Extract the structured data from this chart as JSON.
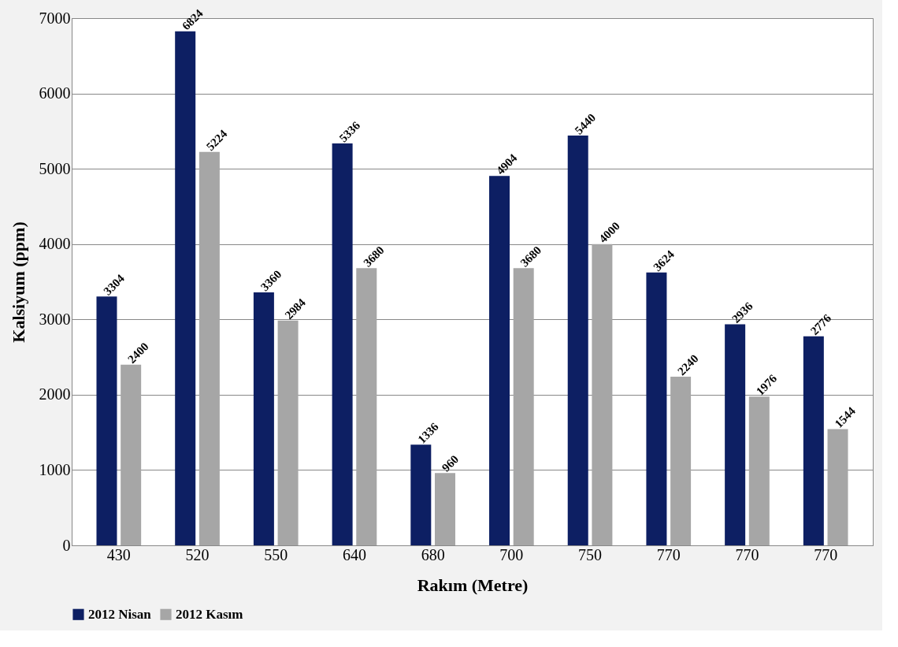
{
  "chart_data": {
    "type": "bar",
    "xlabel": "Rakım (Metre)",
    "ylabel": "Kalsiyum (ppm)",
    "categories": [
      "430",
      "520",
      "550",
      "640",
      "680",
      "700",
      "750",
      "770",
      "770",
      "770"
    ],
    "series": [
      {
        "name": "2012 Nisan",
        "color": "#0d1f63",
        "values": [
          3304,
          6824,
          3360,
          5336,
          1336,
          4904,
          5440,
          3624,
          2936,
          2776
        ]
      },
      {
        "name": "2012 Kasım",
        "color": "#a6a6a6",
        "values": [
          2400,
          5224,
          2984,
          3680,
          960,
          3680,
          4000,
          2240,
          1976,
          1544
        ]
      }
    ],
    "ylim": [
      0,
      7000
    ],
    "yticks": [
      0,
      1000,
      2000,
      3000,
      4000,
      5000,
      6000,
      7000
    ],
    "grid": "y",
    "legend": "bottom",
    "data_labels": true
  }
}
